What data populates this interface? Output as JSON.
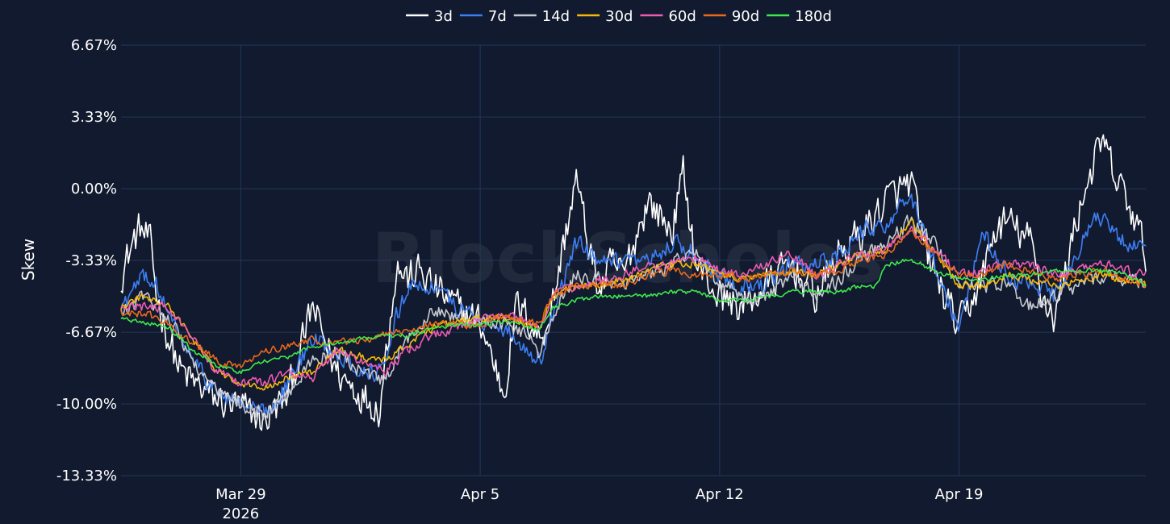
{
  "colors": {
    "background": "#111a2e",
    "grid": "#26365a",
    "text": "#ffffff"
  },
  "watermark": "BlockScholes",
  "chart_data": {
    "type": "line",
    "title": "",
    "xlabel": "",
    "ylabel": "Skew",
    "x_range": [
      -5.0,
      37.8
    ],
    "ylim": [
      -13.33,
      6.67
    ],
    "y_ticks": [
      {
        "value": 6.67,
        "label": "6.67%"
      },
      {
        "value": 3.33,
        "label": "3.33%"
      },
      {
        "value": 0.0,
        "label": "0.00%"
      },
      {
        "value": -3.33,
        "label": "-3.33%"
      },
      {
        "value": -6.67,
        "label": "-6.67%"
      },
      {
        "value": -10.0,
        "label": "-10.00%"
      },
      {
        "value": -13.33,
        "label": "-13.33%"
      }
    ],
    "x_ticks": [
      {
        "value": 0,
        "label": "Mar 29",
        "sublabel": "2026"
      },
      {
        "value": 10,
        "label": "Apr 5",
        "sublabel": ""
      },
      {
        "value": 20,
        "label": "Apr 12",
        "sublabel": ""
      },
      {
        "value": 30,
        "label": "Apr 19",
        "sublabel": ""
      }
    ],
    "grid": true,
    "legend_position": "top-center",
    "series": [
      {
        "name": "3d",
        "color": "#ffffff",
        "noise": 1.2,
        "x": [
          -5.0,
          -4.5,
          -4.2,
          -3.8,
          -3.5,
          -3.0,
          -2.5,
          -2.0,
          -1.0,
          0.0,
          1.0,
          2.0,
          3.0,
          4.0,
          5.0,
          5.8,
          6.5,
          7.0,
          7.5,
          8.0,
          8.5,
          9.0,
          10.0,
          11.0,
          11.5,
          12.0,
          12.5,
          13.0,
          14.0,
          14.5,
          15.0,
          15.5,
          16.0,
          17.0,
          18.0,
          18.5,
          19.0,
          20.0,
          21.0,
          22.0,
          23.0,
          24.0,
          25.0,
          26.0,
          27.0,
          28.0,
          28.5,
          29.0,
          30.0,
          31.0,
          31.5,
          32.0,
          33.0,
          33.5,
          34.0,
          35.0,
          35.5,
          36.0,
          36.5,
          37.0,
          37.8
        ],
        "y": [
          -4.0,
          -2.5,
          -1.8,
          -2.5,
          -5.0,
          -7.0,
          -8.5,
          -9.0,
          -9.8,
          -10.2,
          -10.8,
          -9.5,
          -5.5,
          -8.5,
          -9.5,
          -10.2,
          -3.5,
          -4.2,
          -3.8,
          -4.5,
          -5.0,
          -5.5,
          -6.2,
          -9.5,
          -5.5,
          -6.0,
          -7.0,
          -5.5,
          0.5,
          -2.5,
          -4.8,
          -3.5,
          -4.0,
          -0.5,
          -2.0,
          0.8,
          -3.5,
          -5.0,
          -5.5,
          -4.5,
          -3.5,
          -5.0,
          -3.0,
          -2.0,
          -0.5,
          0.3,
          -2.5,
          -4.0,
          -6.5,
          -4.0,
          -2.0,
          -1.5,
          -2.5,
          -5.0,
          -6.0,
          -1.0,
          0.8,
          2.2,
          0.5,
          -0.5,
          -3.0
        ]
      },
      {
        "name": "7d",
        "color": "#3d7ef3",
        "noise": 0.6,
        "x": [
          -5.0,
          -4.5,
          -4.0,
          -3.5,
          -3.0,
          -2.0,
          -1.0,
          0.0,
          1.0,
          2.0,
          3.0,
          4.0,
          5.0,
          6.0,
          6.5,
          7.0,
          8.0,
          9.0,
          10.0,
          11.0,
          12.0,
          12.5,
          13.0,
          14.0,
          15.0,
          16.0,
          17.0,
          18.0,
          19.0,
          20.0,
          21.0,
          22.0,
          23.0,
          24.0,
          25.0,
          26.0,
          27.0,
          28.0,
          28.5,
          29.0,
          30.0,
          31.0,
          32.0,
          33.0,
          34.0,
          35.0,
          35.5,
          36.0,
          37.0,
          37.8
        ],
        "y": [
          -5.5,
          -4.8,
          -4.0,
          -4.5,
          -6.0,
          -8.0,
          -9.5,
          -10.0,
          -10.5,
          -9.0,
          -7.0,
          -7.5,
          -8.5,
          -8.5,
          -6.0,
          -4.5,
          -4.5,
          -5.5,
          -6.0,
          -6.5,
          -7.5,
          -8.0,
          -6.0,
          -2.5,
          -3.5,
          -3.5,
          -3.5,
          -2.5,
          -3.0,
          -4.0,
          -4.5,
          -4.5,
          -3.5,
          -3.5,
          -3.0,
          -2.0,
          -1.5,
          -0.5,
          -2.0,
          -3.5,
          -6.5,
          -2.0,
          -4.0,
          -4.5,
          -5.0,
          -3.0,
          -1.5,
          -1.5,
          -2.5,
          -3.0
        ]
      },
      {
        "name": "14d",
        "color": "#c7c9d1",
        "noise": 0.5,
        "x": [
          -5.0,
          -4.0,
          -3.0,
          -2.0,
          -1.0,
          0.0,
          1.0,
          2.0,
          3.0,
          4.0,
          5.0,
          6.0,
          7.0,
          8.0,
          9.0,
          10.0,
          11.0,
          12.0,
          12.5,
          13.0,
          14.0,
          15.0,
          16.0,
          17.0,
          18.0,
          19.0,
          20.0,
          21.0,
          22.0,
          23.0,
          24.0,
          25.0,
          26.0,
          27.0,
          28.0,
          29.0,
          30.0,
          31.0,
          32.0,
          33.0,
          34.0,
          35.0,
          36.0,
          37.0,
          37.8
        ],
        "y": [
          -5.8,
          -5.0,
          -6.0,
          -8.0,
          -9.5,
          -10.0,
          -10.5,
          -9.5,
          -8.0,
          -7.5,
          -8.5,
          -9.0,
          -7.0,
          -5.5,
          -6.0,
          -6.0,
          -6.2,
          -6.8,
          -7.8,
          -6.0,
          -4.0,
          -4.2,
          -4.5,
          -4.0,
          -3.5,
          -3.0,
          -4.5,
          -5.0,
          -5.0,
          -4.0,
          -5.0,
          -4.2,
          -3.0,
          -2.5,
          -1.5,
          -2.5,
          -4.5,
          -4.5,
          -4.5,
          -5.5,
          -5.0,
          -4.5,
          -4.0,
          -4.2,
          -4.5
        ]
      },
      {
        "name": "30d",
        "color": "#f5b90a",
        "noise": 0.25,
        "x": [
          -5.0,
          -4.0,
          -3.0,
          -2.0,
          -1.0,
          0.0,
          1.0,
          2.0,
          3.0,
          4.0,
          5.0,
          6.0,
          7.0,
          8.0,
          9.0,
          10.0,
          11.0,
          12.0,
          12.5,
          13.0,
          14.0,
          15.0,
          16.0,
          17.0,
          18.0,
          19.0,
          20.0,
          21.0,
          22.0,
          23.0,
          24.0,
          25.0,
          26.0,
          27.0,
          28.0,
          29.0,
          30.0,
          31.0,
          32.0,
          33.0,
          34.0,
          35.0,
          36.0,
          37.0,
          37.8
        ],
        "y": [
          -5.5,
          -5.0,
          -5.5,
          -7.0,
          -8.5,
          -9.0,
          -9.2,
          -8.8,
          -8.5,
          -7.5,
          -7.8,
          -8.0,
          -7.2,
          -6.5,
          -6.2,
          -6.0,
          -6.0,
          -6.3,
          -6.5,
          -5.0,
          -4.5,
          -4.5,
          -4.2,
          -3.8,
          -3.5,
          -3.5,
          -4.0,
          -4.2,
          -4.0,
          -3.8,
          -4.0,
          -3.5,
          -3.0,
          -2.8,
          -1.5,
          -3.0,
          -4.5,
          -4.5,
          -4.0,
          -4.2,
          -4.5,
          -4.3,
          -4.0,
          -4.3,
          -4.5
        ]
      },
      {
        "name": "60d",
        "color": "#ef5bb2",
        "noise": 0.3,
        "x": [
          -5.0,
          -4.0,
          -3.0,
          -2.0,
          -1.0,
          0.0,
          1.0,
          2.0,
          3.0,
          4.0,
          5.0,
          6.0,
          7.0,
          8.0,
          9.0,
          10.0,
          11.0,
          12.0,
          12.5,
          13.0,
          14.0,
          15.0,
          16.0,
          17.0,
          18.0,
          19.0,
          20.0,
          21.0,
          22.0,
          23.0,
          24.0,
          25.0,
          26.0,
          27.0,
          28.0,
          29.0,
          30.0,
          31.0,
          32.0,
          33.0,
          34.0,
          35.0,
          36.0,
          37.0,
          37.8
        ],
        "y": [
          -5.5,
          -5.5,
          -5.5,
          -7.0,
          -8.5,
          -9.0,
          -9.0,
          -8.5,
          -8.8,
          -7.5,
          -8.0,
          -8.5,
          -7.5,
          -6.8,
          -6.5,
          -6.0,
          -5.8,
          -6.2,
          -6.6,
          -5.0,
          -4.5,
          -4.3,
          -4.0,
          -3.5,
          -3.5,
          -3.2,
          -3.8,
          -4.0,
          -3.5,
          -3.0,
          -4.0,
          -3.5,
          -3.0,
          -2.8,
          -1.8,
          -2.8,
          -4.0,
          -3.8,
          -3.5,
          -3.5,
          -4.0,
          -3.8,
          -3.5,
          -3.8,
          -4.0
        ]
      },
      {
        "name": "90d",
        "color": "#ea6a1a",
        "noise": 0.25,
        "x": [
          -5.0,
          -4.0,
          -3.0,
          -2.0,
          -1.0,
          0.0,
          1.0,
          2.0,
          3.0,
          4.0,
          5.0,
          6.0,
          7.0,
          8.0,
          9.0,
          10.0,
          11.0,
          12.0,
          12.5,
          13.0,
          14.0,
          15.0,
          16.0,
          17.0,
          18.0,
          19.0,
          20.0,
          21.0,
          22.0,
          23.0,
          24.0,
          25.0,
          26.0,
          27.0,
          28.0,
          29.0,
          30.0,
          31.0,
          32.0,
          33.0,
          34.0,
          35.0,
          36.0,
          37.0,
          37.8
        ],
        "y": [
          -5.8,
          -5.8,
          -6.3,
          -7.2,
          -8.0,
          -8.2,
          -7.5,
          -7.3,
          -7.0,
          -7.2,
          -7.0,
          -6.8,
          -6.5,
          -6.3,
          -6.3,
          -6.3,
          -6.0,
          -6.2,
          -6.3,
          -5.0,
          -4.5,
          -4.5,
          -4.5,
          -4.0,
          -3.8,
          -4.0,
          -4.0,
          -4.2,
          -4.0,
          -3.8,
          -4.0,
          -3.8,
          -3.3,
          -3.0,
          -2.0,
          -3.0,
          -4.0,
          -4.0,
          -3.5,
          -3.8,
          -4.2,
          -4.0,
          -3.8,
          -4.2,
          -4.5
        ]
      },
      {
        "name": "180d",
        "color": "#3ee84d",
        "noise": 0.15,
        "x": [
          -5.0,
          -4.0,
          -3.0,
          -2.0,
          -1.0,
          0.0,
          1.0,
          2.0,
          3.0,
          4.0,
          5.0,
          6.0,
          7.0,
          8.0,
          9.0,
          10.0,
          11.0,
          12.0,
          12.5,
          13.0,
          14.0,
          15.0,
          16.0,
          17.0,
          18.0,
          19.0,
          20.0,
          21.0,
          22.0,
          23.0,
          24.0,
          25.0,
          26.0,
          26.5,
          27.0,
          28.0,
          29.0,
          30.0,
          31.0,
          32.0,
          33.0,
          34.0,
          35.0,
          36.0,
          37.0,
          37.8
        ],
        "y": [
          -6.0,
          -6.2,
          -6.5,
          -7.5,
          -8.2,
          -8.5,
          -8.0,
          -7.8,
          -7.3,
          -7.2,
          -7.0,
          -6.8,
          -6.8,
          -6.5,
          -6.3,
          -6.3,
          -6.2,
          -6.4,
          -6.6,
          -5.5,
          -5.2,
          -5.0,
          -5.0,
          -5.0,
          -4.8,
          -4.8,
          -5.2,
          -5.2,
          -5.0,
          -4.8,
          -4.8,
          -4.8,
          -4.5,
          -4.5,
          -3.5,
          -3.3,
          -3.8,
          -4.2,
          -4.2,
          -4.0,
          -4.0,
          -3.8,
          -3.8,
          -3.8,
          -4.0,
          -4.5
        ]
      }
    ]
  }
}
